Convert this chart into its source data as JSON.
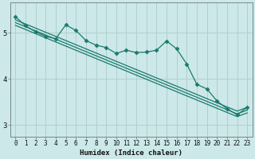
{
  "title": "",
  "xlabel": "Humidex (Indice chaleur)",
  "ylabel": "",
  "bg_color": "#cde8e8",
  "grid_color": "#afd0d0",
  "line_color": "#1a7a6e",
  "x": [
    0,
    1,
    2,
    3,
    4,
    5,
    6,
    7,
    8,
    9,
    10,
    11,
    12,
    13,
    14,
    15,
    16,
    17,
    18,
    19,
    20,
    21,
    22,
    23
  ],
  "y_data": [
    5.35,
    5.15,
    5.02,
    4.92,
    4.87,
    5.17,
    5.05,
    4.83,
    4.73,
    4.68,
    4.55,
    4.62,
    4.57,
    4.58,
    4.62,
    4.82,
    4.65,
    4.32,
    3.88,
    3.78,
    3.52,
    3.35,
    3.22,
    3.38
  ],
  "y_trend1": [
    5.28,
    5.19,
    5.1,
    5.01,
    4.92,
    4.83,
    4.74,
    4.65,
    4.56,
    4.47,
    4.38,
    4.29,
    4.2,
    4.11,
    4.02,
    3.93,
    3.84,
    3.75,
    3.66,
    3.57,
    3.48,
    3.39,
    3.3,
    3.38
  ],
  "y_trend2": [
    5.22,
    5.13,
    5.04,
    4.95,
    4.86,
    4.77,
    4.68,
    4.59,
    4.5,
    4.41,
    4.32,
    4.23,
    4.14,
    4.05,
    3.96,
    3.87,
    3.78,
    3.69,
    3.6,
    3.51,
    3.42,
    3.33,
    3.24,
    3.32
  ],
  "y_trend3": [
    5.16,
    5.07,
    4.98,
    4.89,
    4.8,
    4.71,
    4.62,
    4.53,
    4.44,
    4.35,
    4.26,
    4.17,
    4.08,
    3.99,
    3.9,
    3.81,
    3.72,
    3.63,
    3.54,
    3.45,
    3.36,
    3.27,
    3.18,
    3.26
  ],
  "ylim": [
    2.75,
    5.65
  ],
  "xlim": [
    -0.5,
    23.5
  ],
  "yticks": [
    3,
    4,
    5
  ],
  "xticks": [
    0,
    1,
    2,
    3,
    4,
    5,
    6,
    7,
    8,
    9,
    10,
    11,
    12,
    13,
    14,
    15,
    16,
    17,
    18,
    19,
    20,
    21,
    22,
    23
  ],
  "marker": "D",
  "markersize": 2.5,
  "linewidth": 0.9,
  "tick_fontsize": 5.5,
  "xlabel_fontsize": 6.5
}
